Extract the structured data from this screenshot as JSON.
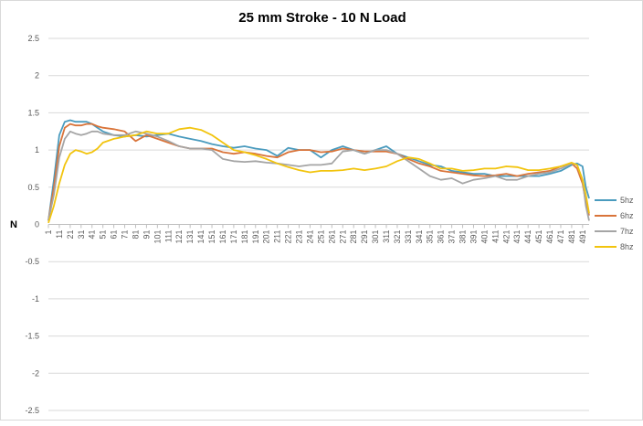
{
  "chart_data": {
    "type": "line",
    "title": "25 mm Stroke - 10 N Load",
    "xlabel": "",
    "ylabel": "N",
    "ylim": [
      -2.5,
      2.5
    ],
    "yticks": [
      "2.5",
      "2",
      "1.5",
      "1",
      "0.5",
      "0",
      "-0.5",
      "-1",
      "-1.5",
      "-2",
      "-2.5"
    ],
    "xrange": [
      1,
      497
    ],
    "xticks": [
      "1",
      "11",
      "21",
      "31",
      "41",
      "51",
      "61",
      "71",
      "81",
      "91",
      "101",
      "111",
      "121",
      "131",
      "141",
      "151",
      "161",
      "171",
      "181",
      "191",
      "201",
      "211",
      "221",
      "231",
      "241",
      "251",
      "261",
      "271",
      "281",
      "291",
      "301",
      "311",
      "321",
      "331",
      "341",
      "351",
      "361",
      "371",
      "381",
      "391",
      "401",
      "411",
      "421",
      "431",
      "441",
      "451",
      "461",
      "471",
      "481",
      "491"
    ],
    "grid": true,
    "legend_position": "right",
    "series": [
      {
        "name": "5hz",
        "color": "#4a9bbe",
        "x": [
          1,
          6,
          11,
          16,
          21,
          26,
          31,
          36,
          41,
          46,
          51,
          61,
          71,
          81,
          91,
          101,
          111,
          121,
          131,
          141,
          151,
          161,
          171,
          181,
          191,
          201,
          211,
          221,
          231,
          241,
          251,
          261,
          271,
          281,
          291,
          301,
          311,
          321,
          331,
          341,
          351,
          361,
          371,
          381,
          391,
          401,
          411,
          421,
          431,
          441,
          451,
          461,
          471,
          481,
          486,
          491,
          494,
          497
        ],
        "y": [
          0.05,
          0.6,
          1.2,
          1.38,
          1.4,
          1.38,
          1.38,
          1.38,
          1.35,
          1.3,
          1.25,
          1.2,
          1.18,
          1.2,
          1.18,
          1.2,
          1.22,
          1.18,
          1.15,
          1.12,
          1.08,
          1.05,
          1.03,
          1.05,
          1.02,
          1.0,
          0.92,
          1.03,
          1.0,
          1.0,
          0.9,
          1.0,
          1.05,
          1.0,
          0.95,
          1.0,
          1.05,
          0.95,
          0.9,
          0.85,
          0.8,
          0.78,
          0.72,
          0.7,
          0.68,
          0.68,
          0.65,
          0.65,
          0.65,
          0.65,
          0.65,
          0.68,
          0.72,
          0.8,
          0.82,
          0.78,
          0.5,
          0.35
        ]
      },
      {
        "name": "6hz",
        "color": "#d9743a",
        "x": [
          1,
          6,
          11,
          16,
          21,
          26,
          31,
          36,
          41,
          46,
          51,
          61,
          71,
          81,
          91,
          101,
          111,
          121,
          131,
          141,
          151,
          161,
          171,
          181,
          191,
          201,
          211,
          221,
          231,
          241,
          251,
          261,
          271,
          281,
          291,
          301,
          311,
          321,
          331,
          341,
          351,
          361,
          371,
          381,
          391,
          401,
          411,
          421,
          431,
          441,
          451,
          461,
          471,
          481,
          486,
          491,
          494,
          497
        ],
        "y": [
          0.05,
          0.5,
          1.05,
          1.3,
          1.35,
          1.33,
          1.33,
          1.35,
          1.35,
          1.32,
          1.3,
          1.28,
          1.25,
          1.12,
          1.2,
          1.15,
          1.1,
          1.05,
          1.02,
          1.02,
          1.02,
          0.97,
          0.95,
          0.97,
          0.95,
          0.92,
          0.9,
          0.97,
          1.0,
          1.0,
          0.97,
          0.98,
          1.02,
          1.0,
          0.98,
          0.98,
          0.98,
          0.95,
          0.88,
          0.82,
          0.78,
          0.72,
          0.7,
          0.68,
          0.66,
          0.65,
          0.66,
          0.68,
          0.65,
          0.68,
          0.7,
          0.72,
          0.78,
          0.82,
          0.75,
          0.55,
          0.3,
          0.12
        ]
      },
      {
        "name": "7hz",
        "color": "#a5a5a5",
        "x": [
          1,
          6,
          11,
          16,
          21,
          26,
          31,
          36,
          41,
          46,
          51,
          61,
          71,
          81,
          91,
          101,
          111,
          121,
          131,
          141,
          151,
          161,
          171,
          181,
          191,
          201,
          211,
          221,
          231,
          241,
          251,
          261,
          271,
          281,
          291,
          301,
          311,
          321,
          331,
          341,
          351,
          361,
          371,
          381,
          391,
          401,
          411,
          421,
          431,
          441,
          451,
          461,
          471,
          481,
          486,
          491,
          494,
          497
        ],
        "y": [
          0.05,
          0.4,
          0.9,
          1.15,
          1.25,
          1.22,
          1.2,
          1.22,
          1.25,
          1.25,
          1.22,
          1.2,
          1.2,
          1.25,
          1.22,
          1.18,
          1.12,
          1.05,
          1.02,
          1.02,
          1.0,
          0.88,
          0.85,
          0.84,
          0.85,
          0.83,
          0.82,
          0.8,
          0.78,
          0.8,
          0.8,
          0.82,
          0.98,
          1.0,
          0.95,
          1.0,
          1.0,
          0.95,
          0.85,
          0.75,
          0.65,
          0.6,
          0.62,
          0.55,
          0.6,
          0.62,
          0.65,
          0.6,
          0.6,
          0.65,
          0.68,
          0.7,
          0.75,
          0.82,
          0.8,
          0.6,
          0.25,
          0.05
        ]
      },
      {
        "name": "8hz",
        "color": "#f2c40e",
        "x": [
          1,
          6,
          11,
          16,
          21,
          26,
          31,
          36,
          41,
          46,
          51,
          61,
          71,
          81,
          91,
          101,
          111,
          121,
          131,
          141,
          151,
          161,
          171,
          181,
          191,
          201,
          211,
          221,
          231,
          241,
          251,
          261,
          271,
          281,
          291,
          301,
          311,
          321,
          331,
          341,
          351,
          361,
          371,
          381,
          391,
          401,
          411,
          421,
          431,
          441,
          451,
          461,
          471,
          481,
          486,
          491,
          494,
          497
        ],
        "y": [
          0.02,
          0.25,
          0.55,
          0.8,
          0.95,
          1.0,
          0.98,
          0.95,
          0.97,
          1.02,
          1.1,
          1.15,
          1.18,
          1.2,
          1.25,
          1.22,
          1.22,
          1.28,
          1.3,
          1.27,
          1.2,
          1.1,
          1.0,
          0.97,
          0.93,
          0.88,
          0.82,
          0.77,
          0.73,
          0.7,
          0.72,
          0.72,
          0.73,
          0.75,
          0.73,
          0.75,
          0.78,
          0.85,
          0.9,
          0.88,
          0.82,
          0.75,
          0.75,
          0.72,
          0.73,
          0.75,
          0.75,
          0.78,
          0.77,
          0.73,
          0.73,
          0.75,
          0.78,
          0.83,
          0.8,
          0.6,
          0.4,
          0.15
        ]
      }
    ]
  }
}
